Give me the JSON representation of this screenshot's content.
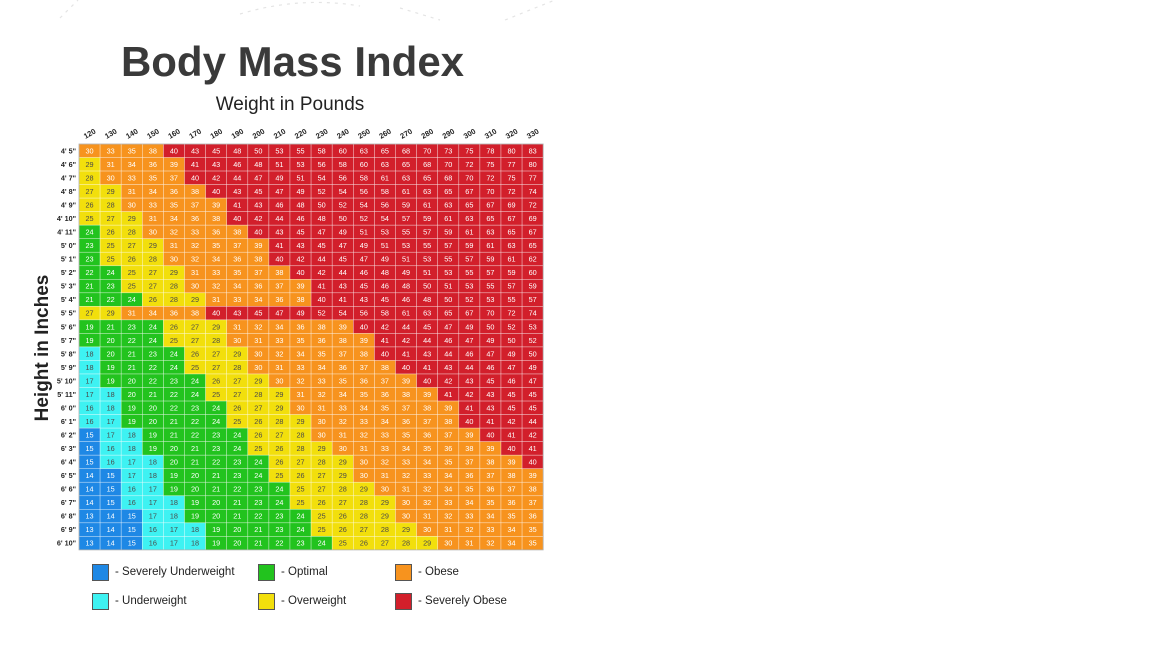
{
  "title": "Body Mass Index",
  "x_axis_label": "Weight in Pounds",
  "y_axis_label": "Height in Inches",
  "legend": [
    {
      "key": "severely_underweight",
      "label": "- Severely Underweight",
      "color": "#1e88e5"
    },
    {
      "key": "optimal",
      "label": "- Optimal",
      "color": "#22c31e"
    },
    {
      "key": "obese",
      "label": "- Obese",
      "color": "#f7931e"
    },
    {
      "key": "underweight",
      "label": "- Underweight",
      "color": "#3ef2f2"
    },
    {
      "key": "overweight",
      "label": "- Overweight",
      "color": "#f2df0c"
    },
    {
      "key": "severely_obese",
      "label": "- Severely Obese",
      "color": "#d21f2b"
    }
  ],
  "chart_data": {
    "type": "heatmap",
    "title": "Body Mass Index",
    "xlabel": "Weight in Pounds",
    "ylabel": "Height in Inches",
    "weights": [
      120,
      130,
      140,
      150,
      160,
      170,
      180,
      190,
      200,
      210,
      220,
      230,
      240,
      250,
      260,
      270,
      280,
      290,
      300,
      310,
      320,
      330
    ],
    "heights": [
      "4' 5\"",
      "4' 6\"",
      "4' 7\"",
      "4' 8\"",
      "4' 9\"",
      "4' 10\"",
      "4' 11\"",
      "5' 0\"",
      "5' 1\"",
      "5' 2\"",
      "5' 3\"",
      "5' 4\"",
      "5' 5\"",
      "5' 6\"",
      "5' 7\"",
      "5' 8\"",
      "5' 9\"",
      "5' 10\"",
      "5' 11\"",
      "6' 0\"",
      "6' 1\"",
      "6' 2\"",
      "6' 3\"",
      "6' 4\"",
      "6' 5\"",
      "6' 6\"",
      "6' 7\"",
      "6' 8\"",
      "6' 9\"",
      "6' 10\""
    ],
    "values": [
      [
        30,
        33,
        35,
        38,
        40,
        43,
        45,
        48,
        50,
        53,
        55,
        58,
        60,
        63,
        65,
        68,
        70,
        73,
        75,
        78,
        80,
        83
      ],
      [
        29,
        31,
        34,
        36,
        39,
        41,
        43,
        46,
        48,
        51,
        53,
        56,
        58,
        60,
        63,
        65,
        68,
        70,
        72,
        75,
        77,
        80
      ],
      [
        28,
        30,
        33,
        35,
        37,
        40,
        42,
        44,
        47,
        49,
        51,
        54,
        56,
        58,
        61,
        63,
        65,
        68,
        70,
        72,
        75,
        77
      ],
      [
        27,
        29,
        31,
        34,
        36,
        38,
        40,
        43,
        45,
        47,
        49,
        52,
        54,
        56,
        58,
        61,
        63,
        65,
        67,
        70,
        72,
        74
      ],
      [
        26,
        28,
        30,
        33,
        35,
        37,
        39,
        41,
        43,
        46,
        48,
        50,
        52,
        54,
        56,
        59,
        61,
        63,
        65,
        67,
        69,
        72
      ],
      [
        25,
        27,
        29,
        31,
        34,
        36,
        38,
        40,
        42,
        44,
        46,
        48,
        50,
        52,
        54,
        57,
        59,
        61,
        63,
        65,
        67,
        69
      ],
      [
        24,
        26,
        28,
        30,
        32,
        33,
        36,
        38,
        40,
        43,
        45,
        47,
        49,
        51,
        53,
        55,
        57,
        59,
        61,
        63,
        65,
        67
      ],
      [
        23,
        25,
        27,
        29,
        31,
        32,
        35,
        37,
        39,
        41,
        43,
        45,
        47,
        49,
        51,
        53,
        55,
        57,
        59,
        61,
        63,
        65
      ],
      [
        23,
        25,
        26,
        28,
        30,
        32,
        34,
        36,
        38,
        40,
        42,
        44,
        45,
        47,
        49,
        51,
        53,
        55,
        57,
        59,
        61,
        62
      ],
      [
        22,
        24,
        25,
        27,
        29,
        31,
        33,
        35,
        37,
        38,
        40,
        42,
        44,
        46,
        48,
        49,
        51,
        53,
        55,
        57,
        59,
        60
      ],
      [
        21,
        23,
        25,
        27,
        28,
        30,
        32,
        34,
        36,
        37,
        39,
        41,
        43,
        45,
        46,
        48,
        50,
        51,
        53,
        55,
        57,
        59
      ],
      [
        21,
        22,
        24,
        26,
        28,
        29,
        31,
        33,
        34,
        36,
        38,
        40,
        41,
        43,
        45,
        46,
        48,
        50,
        52,
        53,
        55,
        57
      ],
      [
        27,
        29,
        31,
        34,
        36,
        38,
        40,
        43,
        45,
        47,
        49,
        52,
        54,
        56,
        58,
        61,
        63,
        65,
        67,
        70,
        72,
        74
      ],
      [
        19,
        21,
        23,
        24,
        26,
        27,
        29,
        31,
        32,
        34,
        36,
        38,
        39,
        40,
        42,
        44,
        45,
        47,
        49,
        50,
        52,
        53
      ],
      [
        19,
        20,
        22,
        24,
        25,
        27,
        28,
        30,
        31,
        33,
        35,
        36,
        38,
        39,
        41,
        42,
        44,
        46,
        47,
        49,
        50,
        52
      ],
      [
        18,
        20,
        21,
        23,
        24,
        26,
        27,
        29,
        30,
        32,
        34,
        35,
        37,
        38,
        40,
        41,
        43,
        44,
        46,
        47,
        49,
        50
      ],
      [
        18,
        19,
        21,
        22,
        24,
        25,
        27,
        28,
        30,
        31,
        33,
        34,
        36,
        37,
        38,
        40,
        41,
        43,
        44,
        46,
        47,
        49
      ],
      [
        17,
        19,
        20,
        22,
        23,
        24,
        26,
        27,
        29,
        30,
        32,
        33,
        35,
        36,
        37,
        39,
        40,
        42,
        43,
        45,
        46,
        47
      ],
      [
        17,
        18,
        20,
        21,
        22,
        24,
        25,
        27,
        28,
        29,
        31,
        32,
        34,
        35,
        36,
        38,
        39,
        41,
        42,
        43,
        45,
        45
      ],
      [
        16,
        18,
        19,
        20,
        22,
        23,
        24,
        26,
        27,
        29,
        30,
        31,
        33,
        34,
        35,
        37,
        38,
        39,
        41,
        43,
        45,
        45
      ],
      [
        16,
        17,
        19,
        20,
        21,
        22,
        24,
        25,
        26,
        28,
        29,
        30,
        32,
        33,
        34,
        36,
        37,
        38,
        40,
        41,
        42,
        44
      ],
      [
        15,
        17,
        18,
        19,
        21,
        22,
        23,
        24,
        26,
        27,
        28,
        30,
        31,
        32,
        33,
        35,
        36,
        37,
        39,
        40,
        41,
        42
      ],
      [
        15,
        16,
        18,
        19,
        20,
        21,
        23,
        24,
        25,
        26,
        28,
        29,
        30,
        31,
        33,
        34,
        35,
        36,
        38,
        39,
        40,
        41
      ],
      [
        15,
        16,
        17,
        18,
        20,
        21,
        22,
        23,
        24,
        26,
        27,
        28,
        29,
        30,
        32,
        33,
        34,
        35,
        37,
        38,
        39,
        40
      ],
      [
        14,
        15,
        17,
        18,
        19,
        20,
        21,
        23,
        24,
        25,
        26,
        27,
        29,
        30,
        31,
        32,
        33,
        34,
        36,
        37,
        38,
        39
      ],
      [
        14,
        15,
        16,
        17,
        19,
        20,
        21,
        22,
        23,
        24,
        25,
        27,
        28,
        29,
        30,
        31,
        32,
        34,
        35,
        36,
        37,
        38
      ],
      [
        14,
        15,
        16,
        17,
        18,
        19,
        20,
        21,
        23,
        24,
        25,
        26,
        27,
        28,
        29,
        30,
        32,
        33,
        34,
        35,
        36,
        37
      ],
      [
        13,
        14,
        15,
        17,
        18,
        19,
        20,
        21,
        22,
        23,
        24,
        25,
        26,
        28,
        29,
        30,
        31,
        32,
        33,
        34,
        35,
        36
      ],
      [
        13,
        14,
        15,
        16,
        17,
        18,
        19,
        20,
        21,
        23,
        24,
        25,
        26,
        27,
        28,
        29,
        30,
        31,
        32,
        33,
        34,
        35
      ],
      [
        13,
        14,
        15,
        16,
        17,
        18,
        19,
        20,
        21,
        22,
        23,
        24,
        25,
        26,
        27,
        28,
        29,
        30,
        31,
        32,
        34,
        35
      ]
    ],
    "color_scale": [
      {
        "max": 15,
        "category": "severely_underweight"
      },
      {
        "max": 18,
        "category": "underweight"
      },
      {
        "max": 24,
        "category": "optimal"
      },
      {
        "max": 29,
        "category": "overweight"
      },
      {
        "max": 39,
        "category": "obese"
      },
      {
        "max": 99,
        "category": "severely_obese"
      }
    ],
    "colors": {
      "severely_underweight": "#1e88e5",
      "underweight": "#3ef2f2",
      "optimal": "#22c31e",
      "overweight": "#f2df0c",
      "obese": "#f7931e",
      "severely_obese": "#d21f2b"
    }
  }
}
